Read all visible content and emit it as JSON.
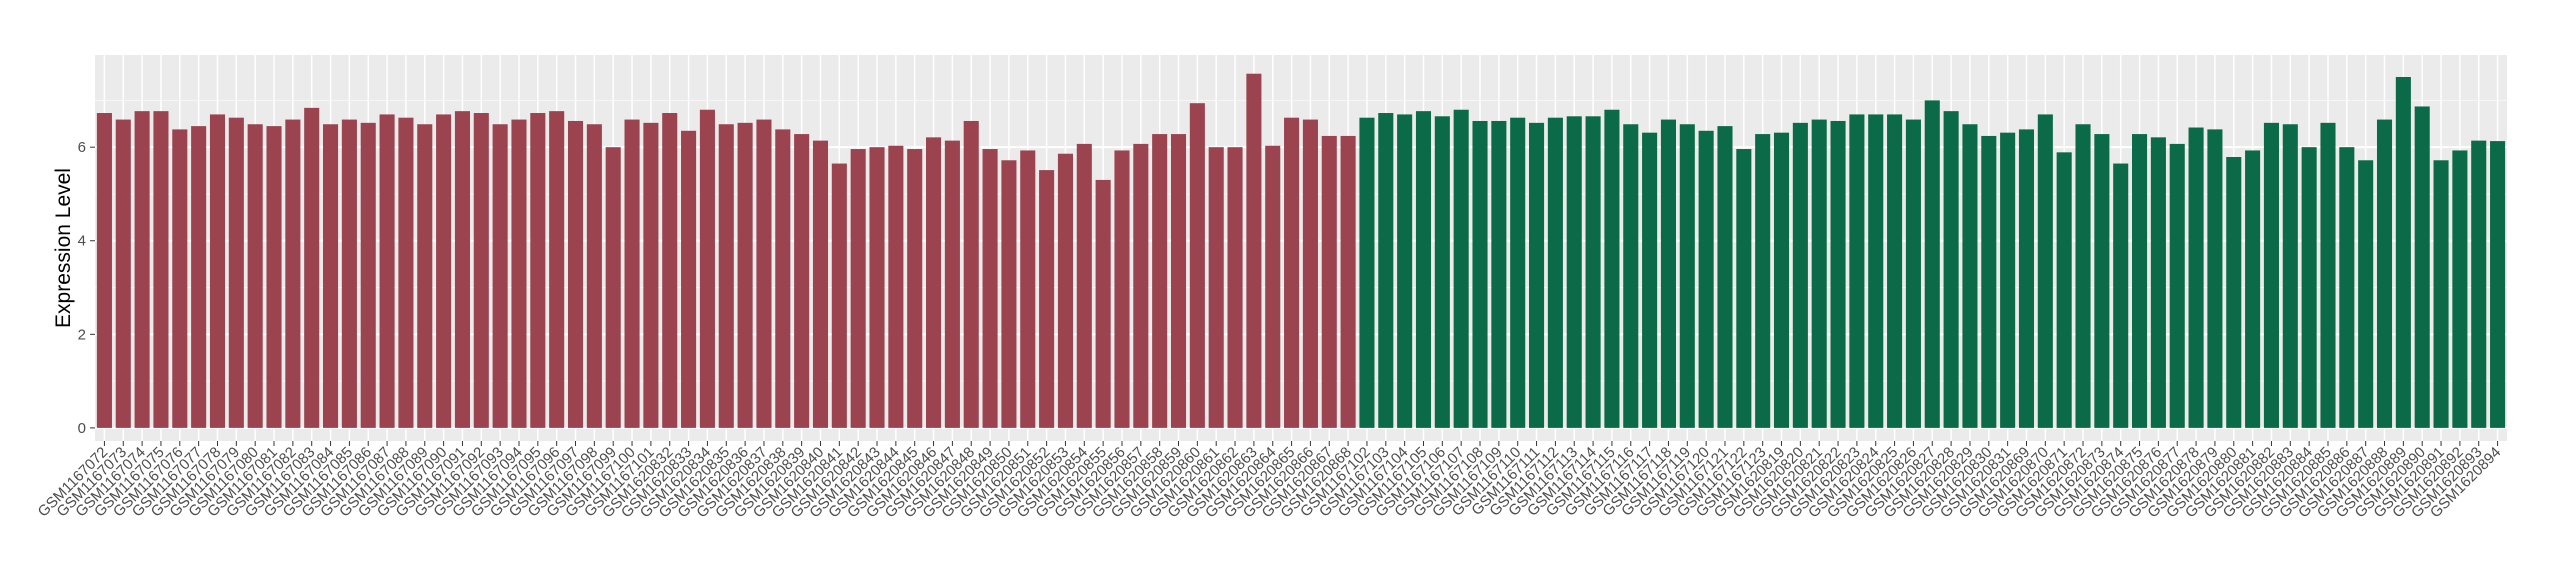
{
  "chart_data": {
    "type": "bar",
    "ylabel": "Expression Level",
    "ylim": [
      -0.28,
      7.97
    ],
    "yticks": [
      0,
      2,
      4,
      6
    ],
    "grid": true,
    "series": [
      {
        "color": "#9b4450",
        "categories": [
          "GSM1167072",
          "GSM1167073",
          "GSM1167074",
          "GSM1167075",
          "GSM1167076",
          "GSM1167077",
          "GSM1167078",
          "GSM1167079",
          "GSM1167080",
          "GSM1167081",
          "GSM1167082",
          "GSM1167083",
          "GSM1167084",
          "GSM1167085",
          "GSM1167086",
          "GSM1167087",
          "GSM1167088",
          "GSM1167089",
          "GSM1167090",
          "GSM1167091",
          "GSM1167092",
          "GSM1167093",
          "GSM1167094",
          "GSM1167095",
          "GSM1167096",
          "GSM1167097",
          "GSM1167098",
          "GSM1167099",
          "GSM1167100",
          "GSM1167101",
          "GSM1620832",
          "GSM1620833",
          "GSM1620834",
          "GSM1620835",
          "GSM1620836",
          "GSM1620837",
          "GSM1620838",
          "GSM1620839",
          "GSM1620840",
          "GSM1620841",
          "GSM1620842",
          "GSM1620843",
          "GSM1620844",
          "GSM1620845",
          "GSM1620846",
          "GSM1620847",
          "GSM1620848",
          "GSM1620849",
          "GSM1620850",
          "GSM1620851",
          "GSM1620852",
          "GSM1620853",
          "GSM1620854",
          "GSM1620855",
          "GSM1620856",
          "GSM1620857",
          "GSM1620858",
          "GSM1620859",
          "GSM1620860",
          "GSM1620861",
          "GSM1620862",
          "GSM1620863",
          "GSM1620864",
          "GSM1620865",
          "GSM1620866",
          "GSM1620867",
          "GSM1620868"
        ],
        "values": [
          6.73,
          6.59,
          6.77,
          6.77,
          6.38,
          6.45,
          6.7,
          6.63,
          6.49,
          6.45,
          6.59,
          6.84,
          6.49,
          6.59,
          6.52,
          6.7,
          6.63,
          6.49,
          6.7,
          6.77,
          6.73,
          6.49,
          6.59,
          6.73,
          6.77,
          6.56,
          6.49,
          6.0,
          6.59,
          6.52,
          6.73,
          6.35,
          6.8,
          6.49,
          6.52,
          6.59,
          6.38,
          6.28,
          6.14,
          5.65,
          5.96,
          6.0,
          6.03,
          5.96,
          6.21,
          6.14,
          6.56,
          5.96,
          5.72,
          5.93,
          5.51,
          5.86,
          6.07,
          5.3,
          5.93,
          6.07,
          6.28,
          6.28,
          6.94,
          6.0,
          6.0,
          7.57,
          6.03,
          6.63,
          6.59,
          6.24,
          6.24
        ]
      },
      {
        "color": "#0b6b48",
        "categories": [
          "GSM1167102",
          "GSM1167103",
          "GSM1167104",
          "GSM1167105",
          "GSM1167106",
          "GSM1167107",
          "GSM1167108",
          "GSM1167109",
          "GSM1167110",
          "GSM1167111",
          "GSM1167112",
          "GSM1167113",
          "GSM1167114",
          "GSM1167115",
          "GSM1167116",
          "GSM1167117",
          "GSM1167118",
          "GSM1167119",
          "GSM1167120",
          "GSM1167121",
          "GSM1167122",
          "GSM1167123",
          "GSM1620819",
          "GSM1620820",
          "GSM1620821",
          "GSM1620822",
          "GSM1620823",
          "GSM1620824",
          "GSM1620825",
          "GSM1620826",
          "GSM1620827",
          "GSM1620828",
          "GSM1620829",
          "GSM1620830",
          "GSM1620831",
          "GSM1620869",
          "GSM1620870",
          "GSM1620871",
          "GSM1620872",
          "GSM1620873",
          "GSM1620874",
          "GSM1620875",
          "GSM1620876",
          "GSM1620877",
          "GSM1620878",
          "GSM1620879",
          "GSM1620880",
          "GSM1620881",
          "GSM1620882",
          "GSM1620883",
          "GSM1620884",
          "GSM1620885",
          "GSM1620886",
          "GSM1620887",
          "GSM1620888",
          "GSM1620889",
          "GSM1620890",
          "GSM1620891",
          "GSM1620892",
          "GSM1620893",
          "GSM1620894"
        ],
        "values": [
          6.63,
          6.73,
          6.7,
          6.77,
          6.66,
          6.8,
          6.56,
          6.56,
          6.63,
          6.52,
          6.63,
          6.66,
          6.66,
          6.8,
          6.49,
          6.31,
          6.59,
          6.49,
          6.35,
          6.45,
          5.96,
          6.28,
          6.31,
          6.52,
          6.59,
          6.56,
          6.7,
          6.7,
          6.7,
          6.59,
          7.0,
          6.77,
          6.49,
          6.24,
          6.31,
          6.38,
          6.7,
          5.89,
          6.49,
          6.28,
          5.65,
          6.28,
          6.21,
          6.07,
          6.42,
          6.38,
          5.79,
          5.93,
          6.52,
          6.49,
          6.0,
          6.52,
          6.0,
          5.72,
          6.59,
          7.5,
          6.87,
          5.72,
          5.93,
          6.14,
          6.13
        ]
      }
    ]
  }
}
